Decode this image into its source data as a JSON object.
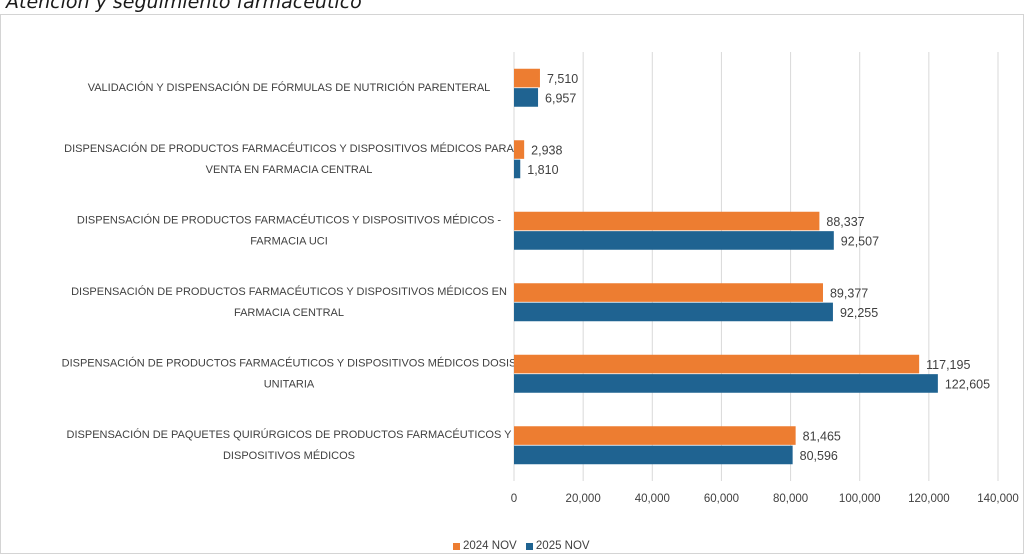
{
  "page": {
    "title": "Atención y seguimiento farmacéutico"
  },
  "chart_data": {
    "type": "bar",
    "orientation": "horizontal",
    "categories": [
      [
        "VALIDACIÓN Y DISPENSACIÓN DE FÓRMULAS DE NUTRICIÓN PARENTERAL"
      ],
      [
        "DISPENSACIÓN DE PRODUCTOS FARMACÉUTICOS Y DISPOSITIVOS MÉDICOS PARA",
        "VENTA EN FARMACIA CENTRAL"
      ],
      [
        "DISPENSACIÓN DE PRODUCTOS FARMACÉUTICOS Y DISPOSITIVOS MÉDICOS -",
        "FARMACIA UCI"
      ],
      [
        "DISPENSACIÓN DE PRODUCTOS FARMACÉUTICOS Y DISPOSITIVOS MÉDICOS EN",
        "FARMACIA CENTRAL"
      ],
      [
        "DISPENSACIÓN DE PRODUCTOS FARMACÉUTICOS Y DISPOSITIVOS MÉDICOS DOSIS",
        "UNITARIA"
      ],
      [
        "DISPENSACIÓN DE PAQUETES QUIRÚRGICOS DE PRODUCTOS FARMACÉUTICOS Y",
        "DISPOSITIVOS MÉDICOS"
      ]
    ],
    "series": [
      {
        "name": "2024 NOV",
        "color": "#ED7D31",
        "values": [
          7510,
          2938,
          88337,
          89377,
          117195,
          81465
        ]
      },
      {
        "name": "2025 NOV",
        "color": "#1F6391",
        "values": [
          6957,
          1810,
          92507,
          92255,
          122605,
          80596
        ]
      }
    ],
    "data_labels": [
      [
        "7,510",
        "2,938",
        "88,337",
        "89,377",
        "117,195",
        "81,465"
      ],
      [
        "6,957",
        "1,810",
        "92,507",
        "92,255",
        "122,605",
        "80,596"
      ]
    ],
    "xlim": [
      0,
      140000
    ],
    "x_ticks": [
      0,
      20000,
      40000,
      60000,
      80000,
      100000,
      120000,
      140000
    ],
    "x_tick_labels": [
      "0",
      "20,000",
      "40,000",
      "60,000",
      "80,000",
      "100,000",
      "120,000",
      "140,000"
    ],
    "grid": "vertical",
    "legend_position": "bottom",
    "gridline_color": "#d9d9d9"
  }
}
